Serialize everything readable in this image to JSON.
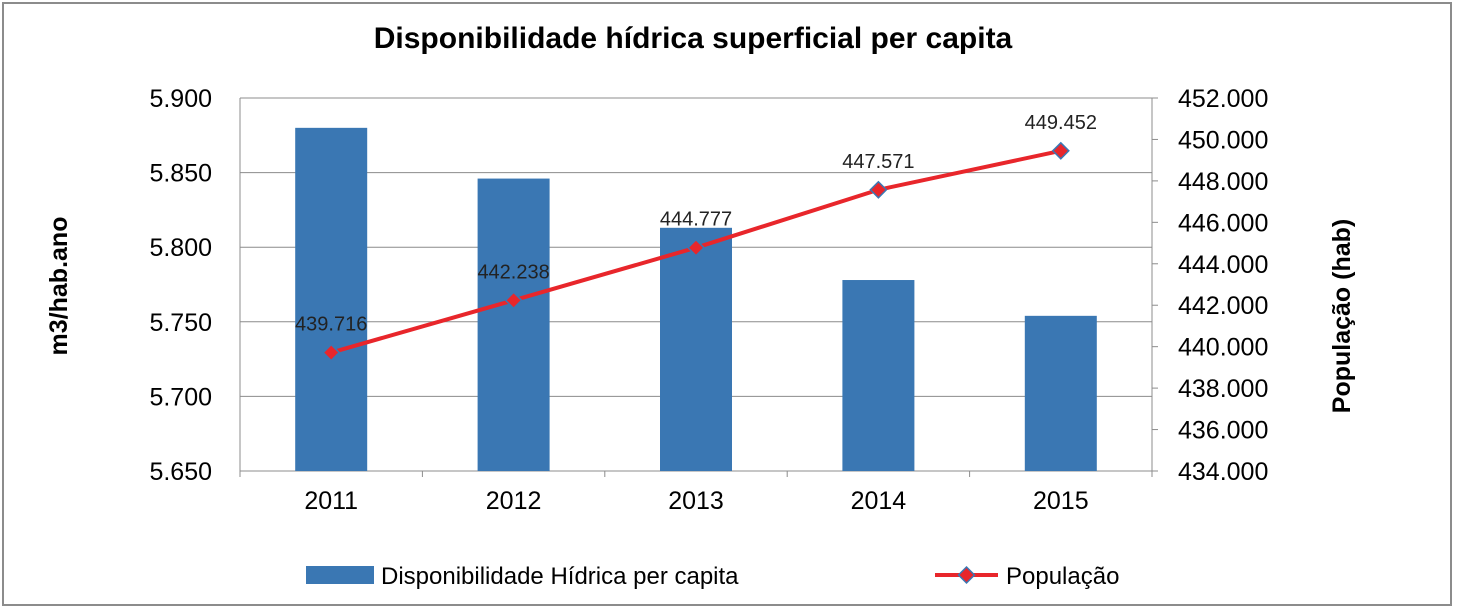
{
  "chart_data": {
    "type": "bar",
    "title": "Disponibilidade hídrica superficial per capita",
    "categories": [
      "2011",
      "2012",
      "2013",
      "2014",
      "2015"
    ],
    "series": [
      {
        "name": "Disponibilidade Hídrica per capita",
        "chart_type": "bar",
        "axis": "left",
        "color": "#3a77b3",
        "values": [
          5880,
          5846,
          5813,
          5778,
          5754
        ]
      },
      {
        "name": "População",
        "chart_type": "line",
        "axis": "right",
        "color": "#e8262b",
        "marker_color": "#e8262b",
        "marker_edge_color": "#3a77b3",
        "values": [
          439716,
          442238,
          444777,
          447571,
          449452
        ],
        "data_labels": [
          "439.716",
          "442.238",
          "444.777",
          "447.571",
          "449.452"
        ]
      }
    ],
    "ylabel_left": "m3/hab.ano",
    "ylabel_right": "População (hab)",
    "ylim_left": [
      5650,
      5900
    ],
    "ylim_right": [
      434000,
      452000
    ],
    "left_ticks": [
      "5.650",
      "5.700",
      "5.750",
      "5.800",
      "5.850",
      "5.900"
    ],
    "right_ticks": [
      "434.000",
      "436.000",
      "438.000",
      "440.000",
      "442.000",
      "444.000",
      "446.000",
      "448.000",
      "450.000",
      "452.000"
    ],
    "grid": true,
    "legend_position": "bottom"
  }
}
